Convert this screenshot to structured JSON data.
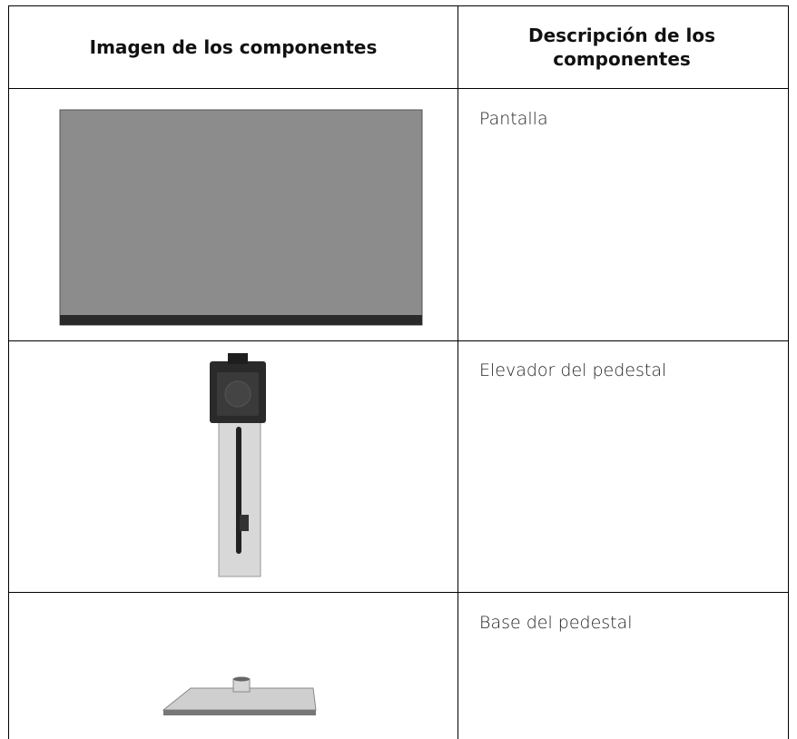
{
  "table": {
    "headers": [
      "Imagen de los componentes",
      "Descripción de los componentes"
    ],
    "rows": [
      [
        "Pantalla"
      ],
      [
        "Elevador del pedestal"
      ],
      [
        "Base del pedestal"
      ]
    ]
  }
}
